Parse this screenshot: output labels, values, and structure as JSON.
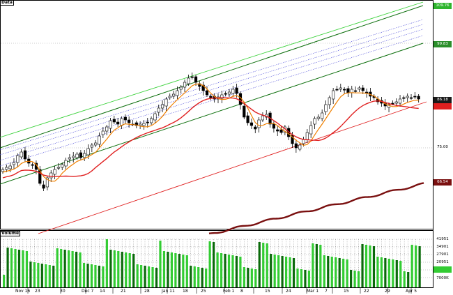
{
  "panes": {
    "price_title": "Data",
    "volume_title": "Volume"
  },
  "price_axis": {
    "ticks": [
      "99.83",
      "75.00"
    ],
    "tags": {
      "top": "109.76",
      "upper": "99.83",
      "last": "86.18",
      "close": "",
      "ma": "66.54"
    },
    "colors": {
      "top": "#2db52d",
      "upper": "#2b8f2b",
      "last": "#1a1a1a",
      "close": "#e02020",
      "ma": "#7a1010"
    }
  },
  "volume_axis": {
    "ticks": [
      "41951",
      "34901",
      "27901",
      "20951",
      "13951",
      "7000K"
    ],
    "last_tag": "",
    "last_color": "#33cc33"
  },
  "x_axis": {
    "labels": [
      "Nov 16",
      "23",
      "30",
      "Dec 7",
      "14",
      "21",
      "28",
      "Jan 11",
      "18",
      "25",
      "Feb 1",
      "8",
      "15",
      "24",
      "Mar 1",
      "7",
      "15",
      "22",
      "29",
      "Apr 5"
    ]
  },
  "colors": {
    "candle_up": "#ffffff",
    "candle_down": "#000000",
    "ma_short": "#f08000",
    "ma_long": "#e02020",
    "ma_longterm": "#7a1010",
    "channel_light": "#3cd23c",
    "channel_dark": "#0b6e0b",
    "regression": "#2020d0",
    "support": "#e02020",
    "vol_up": "#33cc33",
    "vol_down": "#0a6a0a"
  }
}
